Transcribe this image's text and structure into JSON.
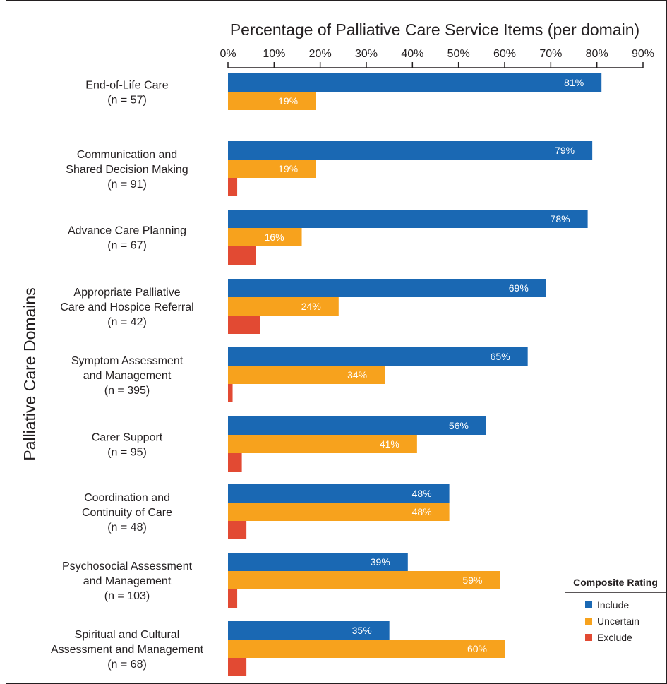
{
  "chart_data": {
    "type": "bar",
    "orientation": "horizontal",
    "title": "Percentage of Palliative Care Service Items (per domain)",
    "xlabel": "",
    "ylabel": "Palliative Care Domains",
    "xlim": [
      0,
      90
    ],
    "x_ticks": [
      "0%",
      "10%",
      "20%",
      "30%",
      "40%",
      "50%",
      "60%",
      "70%",
      "80%",
      "90%"
    ],
    "grid": false,
    "legend_position": "bottom-right",
    "legend_title": "Composite Rating",
    "categories": [
      {
        "lines": [
          "End-of-Life Care"
        ],
        "n": "(n = 57)"
      },
      {
        "lines": [
          "Communication and",
          "Shared Decision Making"
        ],
        "n": "(n = 91)"
      },
      {
        "lines": [
          "Advance Care Planning"
        ],
        "n": "(n = 67)"
      },
      {
        "lines": [
          "Appropriate Palliative",
          "Care and Hospice Referral"
        ],
        "n": "(n = 42)"
      },
      {
        "lines": [
          "Symptom Assessment",
          "and Management"
        ],
        "n": "(n = 395)"
      },
      {
        "lines": [
          "Carer Support"
        ],
        "n": "(n = 95)"
      },
      {
        "lines": [
          "Coordination and",
          "Continuity of Care"
        ],
        "n": "(n = 48)"
      },
      {
        "lines": [
          "Psychosocial Assessment",
          "and Management"
        ],
        "n": "(n = 103)"
      },
      {
        "lines": [
          "Spiritual and Cultural",
          "Assessment and Management"
        ],
        "n": "(n = 68)"
      }
    ],
    "series": [
      {
        "name": "Include",
        "color": "#1a68b3",
        "values": [
          81,
          79,
          78,
          69,
          65,
          56,
          48,
          39,
          35
        ],
        "labels": [
          "81%",
          "79%",
          "78%",
          "69%",
          "65%",
          "56%",
          "48%",
          "39%",
          "35%"
        ]
      },
      {
        "name": "Uncertain",
        "color": "#f7a21d",
        "values": [
          19,
          19,
          16,
          24,
          34,
          41,
          48,
          59,
          60
        ],
        "labels": [
          "19%",
          "19%",
          "16%",
          "24%",
          "34%",
          "41%",
          "48%",
          "59%",
          "60%"
        ]
      },
      {
        "name": "Exclude",
        "color": "#e24a33",
        "values": [
          0,
          2,
          6,
          7,
          1,
          3,
          4,
          2,
          4
        ],
        "labels": [
          "",
          "",
          "",
          "",
          "",
          "",
          "",
          "",
          ""
        ]
      }
    ]
  }
}
